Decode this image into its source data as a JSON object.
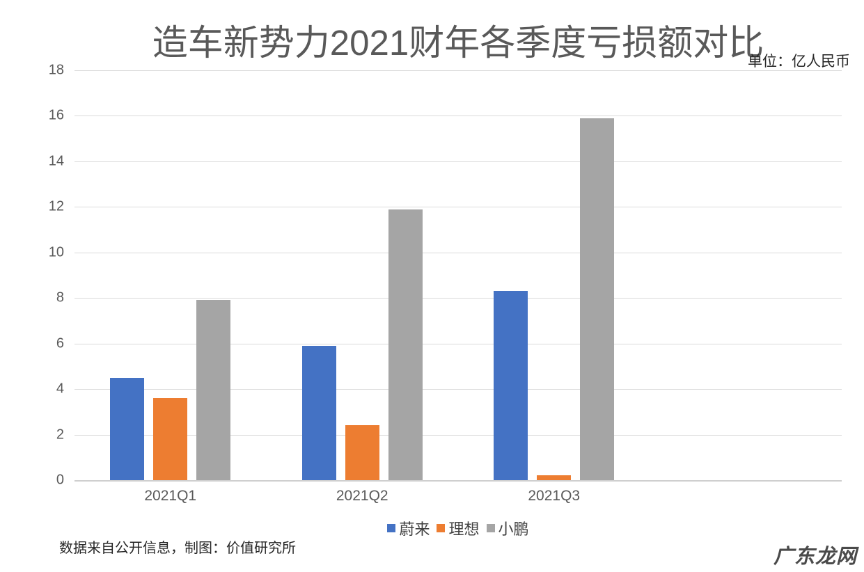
{
  "chart_data": {
    "type": "bar",
    "title": "造车新势力2021财年各季度亏损额对比",
    "unit_label": "单位：亿人民币",
    "categories": [
      "2021Q1",
      "2021Q2",
      "2021Q3"
    ],
    "series": [
      {
        "name": "蔚来",
        "slug": "weilai",
        "color": "#4472C4",
        "values": [
          4.5,
          5.9,
          8.3
        ]
      },
      {
        "name": "理想",
        "slug": "lixiang",
        "color": "#ED7D31",
        "values": [
          3.6,
          2.4,
          0.2
        ]
      },
      {
        "name": "小鹏",
        "slug": "xiaopeng",
        "color": "#A5A5A5",
        "values": [
          7.9,
          11.9,
          15.9
        ]
      }
    ],
    "xlabel": "",
    "ylabel": "",
    "ylim": [
      0,
      18
    ],
    "ytick_step": 2,
    "grid": true,
    "legend_position": "bottom",
    "colors": {
      "gridline": "#DADADA",
      "axis_line": "#CFCFCF",
      "axis_text": "#595959",
      "title_text": "#595959"
    }
  },
  "footer": {
    "note": "数据来自公开信息，制图：价值研究所",
    "watermark": "广东龙网"
  }
}
